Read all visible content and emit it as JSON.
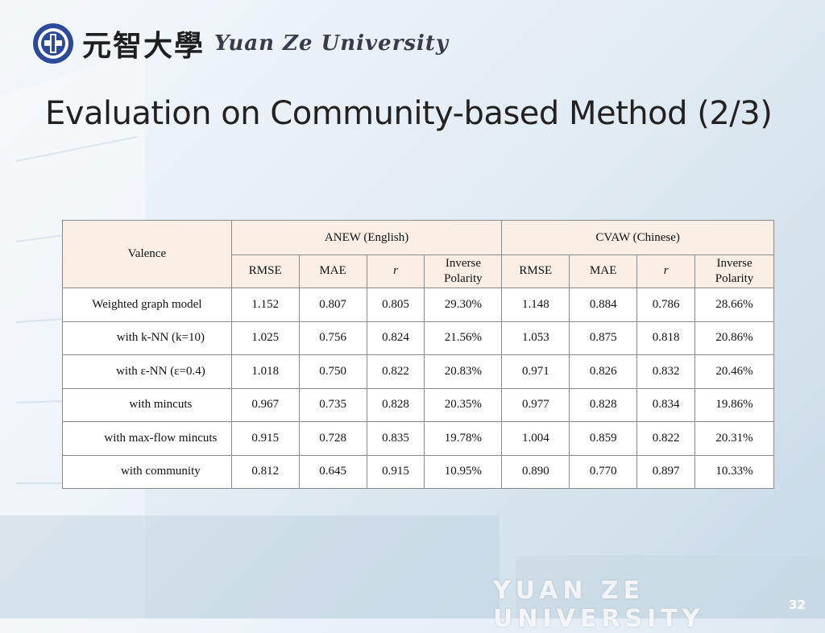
{
  "header": {
    "logo_cn": "元智大學",
    "logo_en": "Yuan Ze University"
  },
  "slide": {
    "title": "Evaluation on Community-based Method (2/3)",
    "footer": "YUAN ZE UNIVERSITY",
    "page_number": "32"
  },
  "table": {
    "corner_label": "Valence",
    "groups": [
      "ANEW (English)",
      "CVAW (Chinese)"
    ],
    "subheaders": [
      "RMSE",
      "MAE",
      "r",
      "Inverse Polarity"
    ],
    "rows": [
      {
        "label": "Weighted graph model",
        "indent": false,
        "anew": [
          "1.152",
          "0.807",
          "0.805",
          "29.30%"
        ],
        "cvaw": [
          "1.148",
          "0.884",
          "0.786",
          "28.66%"
        ]
      },
      {
        "label": "with k-NN (k=10)",
        "indent": true,
        "anew": [
          "1.025",
          "0.756",
          "0.824",
          "21.56%"
        ],
        "cvaw": [
          "1.053",
          "0.875",
          "0.818",
          "20.86%"
        ]
      },
      {
        "label": "with ε-NN (ε=0.4)",
        "indent": true,
        "anew": [
          "1.018",
          "0.750",
          "0.822",
          "20.83%"
        ],
        "cvaw": [
          "0.971",
          "0.826",
          "0.832",
          "20.46%"
        ]
      },
      {
        "label": "with mincuts",
        "indent": true,
        "anew": [
          "0.967",
          "0.735",
          "0.828",
          "20.35%"
        ],
        "cvaw": [
          "0.977",
          "0.828",
          "0.834",
          "19.86%"
        ]
      },
      {
        "label": "with max-flow mincuts",
        "indent": true,
        "anew": [
          "0.915",
          "0.728",
          "0.835",
          "19.78%"
        ],
        "cvaw": [
          "1.004",
          "0.859",
          "0.822",
          "20.31%"
        ]
      },
      {
        "label": "with community",
        "indent": true,
        "bold": true,
        "anew": [
          "0.812",
          "0.645",
          "0.915",
          "10.95%"
        ],
        "cvaw": [
          "0.890",
          "0.770",
          "0.897",
          "10.33%"
        ]
      }
    ]
  },
  "colors": {
    "header_fill": "#fbeee4",
    "highlight_text": "#2020c8"
  }
}
